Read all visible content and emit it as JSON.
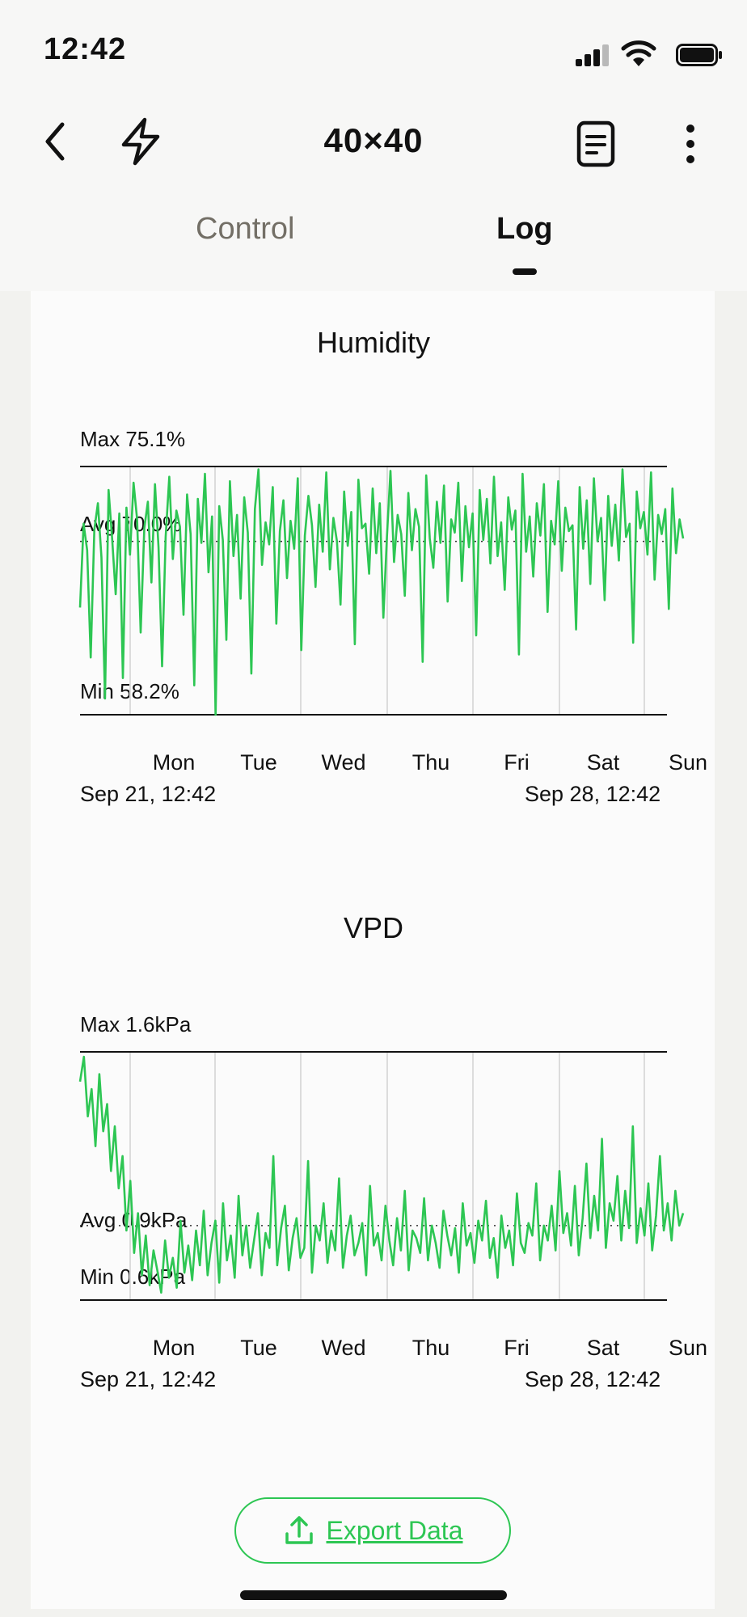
{
  "status_bar": {
    "time": "12:42"
  },
  "header": {
    "title": "40×40"
  },
  "tabs": [
    {
      "label": "Control",
      "active": false
    },
    {
      "label": "Log",
      "active": true
    }
  ],
  "colors": {
    "accent": "#2dc653",
    "text": "#111111",
    "tab_inactive": "#736f66"
  },
  "days": [
    "Mon",
    "Tue",
    "Wed",
    "Thu",
    "Fri",
    "Sat",
    "Sun"
  ],
  "charts": {
    "humidity": {
      "title": "Humidity",
      "max_label": "Max 75.1%",
      "avg_label": "Avg 70.0%",
      "min_label": "Min 58.2%",
      "start_label": "Sep 21, 12:42",
      "end_label": "Sep 28, 12:42"
    },
    "vpd": {
      "title": "VPD",
      "max_label": "Max 1.6kPa",
      "avg_label": "Avg 0.9kPa",
      "min_label": "Min 0.6kPa",
      "start_label": "Sep 21, 12:42",
      "end_label": "Sep 28, 12:42"
    }
  },
  "chart_data": [
    {
      "type": "line",
      "title": "Humidity",
      "unit": "%",
      "x_start": "Sep 21, 12:42",
      "x_end": "Sep 28, 12:42",
      "tick_labels": [
        "Mon",
        "Tue",
        "Wed",
        "Thu",
        "Fri",
        "Sat",
        "Sun"
      ],
      "ylim": [
        58.2,
        75.1
      ],
      "max": 75.1,
      "avg": 70.0,
      "min": 58.2,
      "grid": true,
      "series": [
        {
          "values": [
            65.5,
            71.2,
            69.4,
            62.1,
            70.8,
            72.6,
            68.9,
            59.3,
            73.5,
            70.2,
            66.4,
            71.9,
            60.7,
            72.3,
            69.1,
            74.0,
            71.5,
            63.8,
            70.9,
            72.7,
            67.2,
            73.9,
            69.6,
            61.5,
            70.3,
            74.4,
            68.8,
            72.1,
            71.0,
            65.0,
            73.2,
            70.5,
            60.2,
            72.9,
            69.9,
            74.6,
            67.9,
            71.7,
            58.2,
            72.4,
            70.1,
            63.3,
            74.1,
            69.0,
            71.8,
            66.1,
            73.0,
            70.6,
            61.0,
            72.2,
            74.9,
            68.4,
            71.3,
            69.8,
            73.7,
            64.4,
            70.7,
            72.8,
            67.5,
            71.4,
            69.5,
            74.3,
            62.6,
            70.4,
            73.1,
            71.1,
            66.9,
            72.5,
            69.3,
            74.7,
            68.1,
            71.6,
            70.0,
            65.7,
            73.4,
            69.7,
            72.0,
            63.0,
            74.2,
            70.9,
            71.2,
            67.8,
            73.6,
            69.2,
            72.6,
            64.8,
            70.3,
            74.8,
            68.6,
            71.8,
            70.5,
            66.3,
            73.3,
            69.4,
            72.2,
            71.0,
            61.8,
            74.5,
            70.2,
            68.2,
            72.7,
            69.9,
            73.8,
            65.9,
            71.5,
            70.6,
            74.0,
            67.3,
            72.4,
            69.6,
            71.9,
            63.6,
            73.5,
            70.1,
            72.9,
            68.5,
            74.4,
            69.0,
            71.3,
            66.7,
            73.0,
            70.8,
            72.1,
            62.3,
            74.6,
            69.3,
            71.7,
            67.6,
            72.6,
            70.4,
            73.9,
            65.2,
            71.4,
            69.8,
            74.1,
            68.0,
            72.3,
            70.7,
            71.1,
            64.0,
            73.7,
            69.5,
            72.8,
            67.1,
            74.3,
            70.0,
            71.6,
            66.0,
            73.1,
            69.7,
            72.5,
            68.7,
            74.9,
            70.3,
            71.2,
            63.1,
            73.4,
            70.9,
            72.0,
            69.1,
            74.7,
            67.4,
            71.8,
            70.5,
            72.2,
            65.4,
            73.6,
            69.2,
            71.5,
            70.2
          ],
          "approximate": true
        }
      ]
    },
    {
      "type": "line",
      "title": "VPD",
      "unit": "kPa",
      "x_start": "Sep 21, 12:42",
      "x_end": "Sep 28, 12:42",
      "tick_labels": [
        "Mon",
        "Tue",
        "Wed",
        "Thu",
        "Fri",
        "Sat",
        "Sun"
      ],
      "ylim": [
        0.6,
        1.6
      ],
      "max": 1.6,
      "avg": 0.9,
      "min": 0.6,
      "grid": true,
      "series": [
        {
          "values": [
            1.48,
            1.58,
            1.34,
            1.45,
            1.22,
            1.51,
            1.28,
            1.39,
            1.12,
            1.3,
            1.05,
            1.18,
            0.88,
            1.08,
            0.79,
            0.95,
            0.7,
            0.86,
            0.66,
            0.8,
            0.72,
            0.63,
            0.84,
            0.69,
            0.77,
            0.65,
            0.92,
            0.71,
            0.82,
            0.68,
            0.88,
            0.74,
            0.96,
            0.7,
            0.83,
            0.92,
            0.67,
            0.99,
            0.76,
            0.86,
            0.69,
            1.02,
            0.78,
            0.9,
            0.73,
            0.84,
            0.95,
            0.7,
            0.87,
            0.81,
            1.18,
            0.74,
            0.89,
            0.98,
            0.72,
            0.85,
            0.93,
            0.77,
            0.81,
            1.16,
            0.71,
            0.9,
            0.84,
            0.99,
            0.75,
            0.88,
            0.8,
            1.09,
            0.73,
            0.86,
            0.94,
            0.78,
            0.83,
            0.91,
            0.7,
            1.06,
            0.82,
            0.87,
            0.76,
            0.98,
            0.84,
            0.74,
            0.93,
            0.8,
            1.04,
            0.72,
            0.88,
            0.85,
            0.79,
            1.01,
            0.76,
            0.9,
            0.83,
            0.73,
            0.96,
            0.86,
            0.78,
            0.89,
            0.71,
            0.99,
            0.82,
            0.87,
            0.75,
            0.92,
            0.84,
            1.0,
            0.77,
            0.85,
            0.69,
            0.94,
            0.81,
            0.88,
            0.74,
            1.03,
            0.83,
            0.79,
            0.91,
            0.86,
            1.07,
            0.76,
            0.9,
            0.84,
            0.98,
            0.8,
            1.12,
            0.87,
            0.95,
            0.82,
            1.06,
            0.78,
            0.93,
            1.15,
            0.85,
            1.02,
            0.88,
            1.25,
            0.81,
            0.99,
            0.92,
            1.1,
            0.84,
            1.04,
            0.89,
            1.3,
            0.83,
            0.97,
            0.86,
            1.07,
            0.8,
            0.94,
            1.18,
            0.88,
            0.99,
            0.84,
            1.04,
            0.9,
            0.95
          ],
          "approximate": true
        }
      ]
    }
  ],
  "export": {
    "label": "Export Data"
  }
}
